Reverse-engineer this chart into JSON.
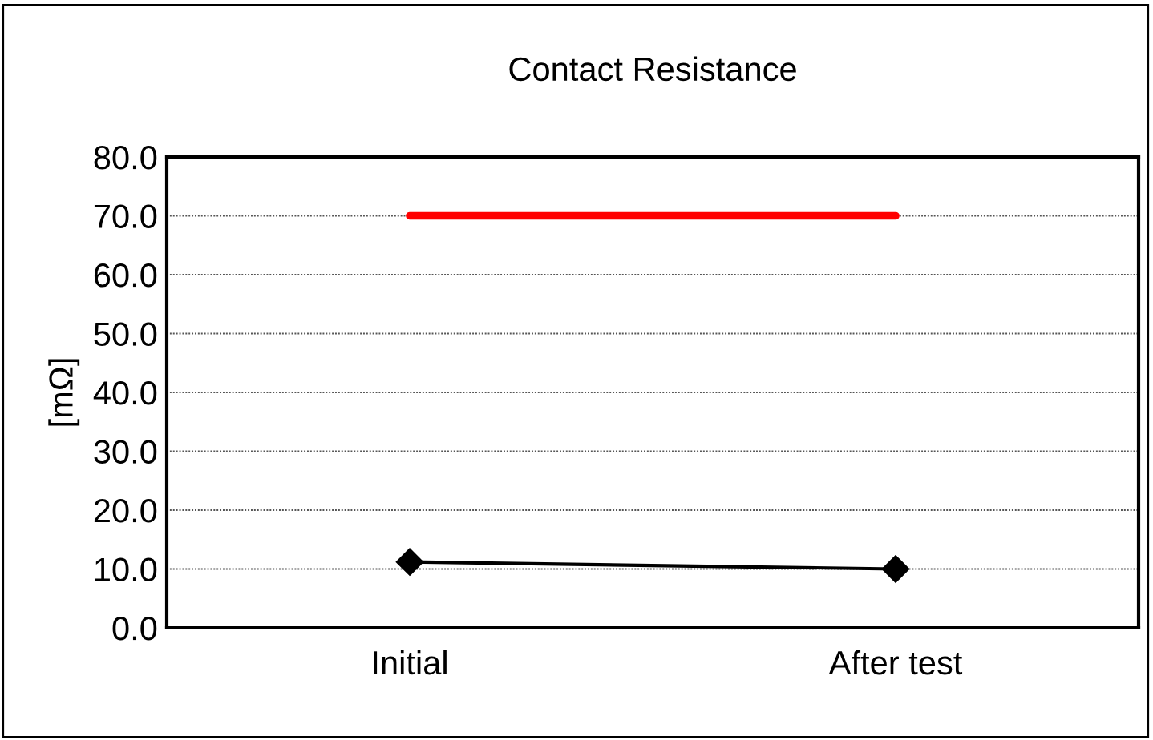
{
  "chart_data": {
    "type": "line",
    "title": "Contact Resistance",
    "ylabel": "[mΩ]",
    "categories": [
      "Initial",
      "After test"
    ],
    "series": [
      {
        "color": "#ff0000",
        "values": [
          70,
          70
        ],
        "marker": "none",
        "line_style": "solid"
      },
      {
        "color": "#000000",
        "values": [
          11.2,
          10.0
        ],
        "marker": "diamond",
        "line_style": "solid"
      }
    ],
    "ylim": [
      0,
      80
    ],
    "yticks": [
      {
        "value": 0,
        "label": "0.0"
      },
      {
        "value": 10,
        "label": "10.0"
      },
      {
        "value": 20,
        "label": "20.0"
      },
      {
        "value": 30,
        "label": "30.0"
      },
      {
        "value": 40,
        "label": "40.0"
      },
      {
        "value": 50,
        "label": "50.0"
      },
      {
        "value": 60,
        "label": "60.0"
      },
      {
        "value": 70,
        "label": "70.0"
      },
      {
        "value": 80,
        "label": "80.0"
      }
    ],
    "grid": "y"
  }
}
